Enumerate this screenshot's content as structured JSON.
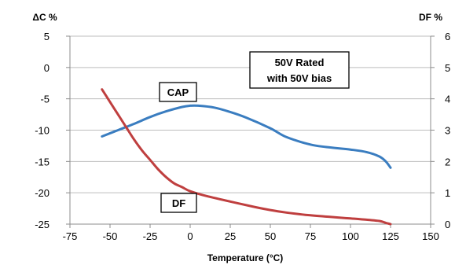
{
  "chart_data": {
    "type": "line",
    "title": "",
    "xlabel": "Temperature (°C)",
    "ylabel_left": "ΔC %",
    "ylabel_right": "DF %",
    "xlim": [
      -75,
      150
    ],
    "ylim_left": [
      -25,
      5
    ],
    "ylim_right": [
      0,
      6
    ],
    "x_ticks": [
      "-75",
      "-50",
      "-25",
      "0",
      "25",
      "50",
      "75",
      "100",
      "125",
      "150"
    ],
    "y_left_ticks": [
      "5",
      "0",
      "-5",
      "-10",
      "-15",
      "-20",
      "-25"
    ],
    "y_right_ticks": [
      "6",
      "5",
      "4",
      "3",
      "2",
      "1",
      "0"
    ],
    "grid": "horizontal",
    "series": [
      {
        "name": "CAP",
        "axis": "left",
        "color": "#3a7dc0",
        "x": [
          -55,
          -45,
          -35,
          -25,
          -15,
          -5,
          0,
          5,
          15,
          25,
          35,
          50,
          60,
          75,
          85,
          100,
          110,
          118,
          122,
          125
        ],
        "y": [
          -11,
          -10,
          -9,
          -7.9,
          -7,
          -6.3,
          -6.1,
          -6.1,
          -6.4,
          -7.1,
          -8,
          -9.7,
          -11.1,
          -12.3,
          -12.7,
          -13.1,
          -13.5,
          -14.2,
          -15,
          -16
        ]
      },
      {
        "name": "DF",
        "axis": "right",
        "color": "#bf3f3f",
        "x": [
          -55,
          -50,
          -45,
          -40,
          -35,
          -30,
          -25,
          -20,
          -15,
          -10,
          -5,
          0,
          10,
          25,
          40,
          50,
          60,
          75,
          90,
          100,
          110,
          118,
          122,
          125
        ],
        "y": [
          4.3,
          3.9,
          3.5,
          3.1,
          2.7,
          2.35,
          2.05,
          1.75,
          1.5,
          1.3,
          1.18,
          1.05,
          0.9,
          0.72,
          0.55,
          0.45,
          0.37,
          0.28,
          0.22,
          0.18,
          0.14,
          0.1,
          0.04,
          0
        ]
      }
    ],
    "annotations": {
      "rating_line1": "50V Rated",
      "rating_line2": "with 50V bias",
      "cap_label": "CAP",
      "df_label": "DF"
    }
  }
}
